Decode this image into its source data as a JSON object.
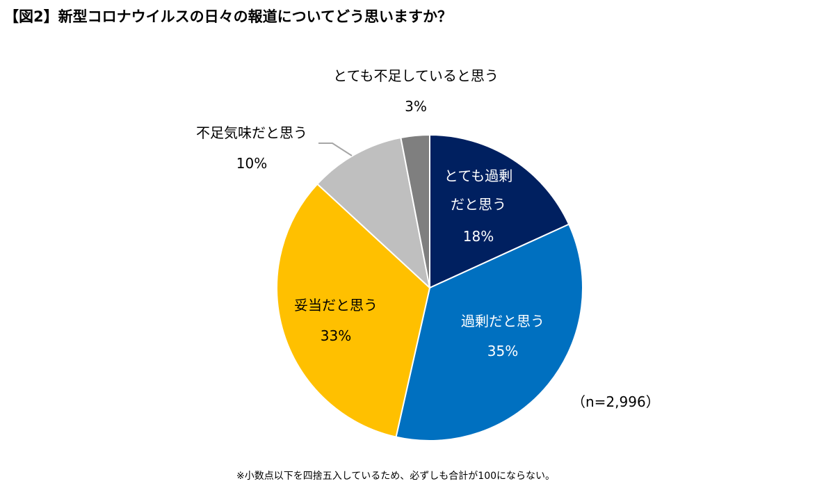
{
  "chart_data": {
    "type": "pie",
    "title": "【図2】新型コロナウイルスの日々の報道についてどう思いますか？",
    "sample_size": "（n=2,996）",
    "footnote": "※小数点以下を四捨五入しているため、必ずしも合計が100にならない。",
    "start_angle_deg": 0,
    "direction": "clockwise",
    "slices": [
      {
        "label": "とても過剰だと思う",
        "label_lines": [
          "とても過剰",
          "だと思う"
        ],
        "value": 18,
        "display": "18%",
        "color": "#002060",
        "text_color": "#ffffff"
      },
      {
        "label": "過剰だと思う",
        "label_lines": [
          "過剰だと思う"
        ],
        "value": 35,
        "display": "35%",
        "color": "#0070C0",
        "text_color": "#ffffff"
      },
      {
        "label": "妥当だと思う",
        "label_lines": [
          "妥当だと思う"
        ],
        "value": 33,
        "display": "33%",
        "color": "#FFC000",
        "text_color": "#000000"
      },
      {
        "label": "不足気味だと思う",
        "label_lines": [
          "不足気味だと思う"
        ],
        "value": 10,
        "display": "10%",
        "color": "#BFBFBF",
        "text_color": "#000000"
      },
      {
        "label": "とても不足していると思う",
        "label_lines": [
          "とても不足していると思う"
        ],
        "value": 3,
        "display": "3%",
        "color": "#7F7F7F",
        "text_color": "#000000"
      }
    ]
  }
}
